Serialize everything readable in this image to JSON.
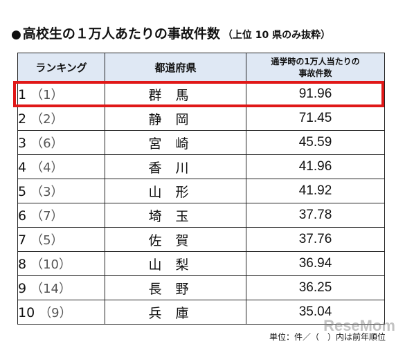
{
  "title": {
    "bullet": "●",
    "main": "高校生の１万人あたりの事故件数",
    "sub": "（上位 10 県のみ抜粋）"
  },
  "table": {
    "headers": {
      "rank": "ランキング",
      "prefecture": "都道府県",
      "rate_line1": "通学時の1万人当たりの",
      "rate_line2": "事故件数"
    },
    "rows": [
      {
        "rank": "1",
        "prev": "（1）",
        "prefecture": "群馬",
        "rate": "91.96"
      },
      {
        "rank": "2",
        "prev": "（2）",
        "prefecture": "静岡",
        "rate": "71.45"
      },
      {
        "rank": "3",
        "prev": "（6）",
        "prefecture": "宮崎",
        "rate": "45.59"
      },
      {
        "rank": "4",
        "prev": "（4）",
        "prefecture": "香川",
        "rate": "41.96"
      },
      {
        "rank": "5",
        "prev": "（3）",
        "prefecture": "山形",
        "rate": "41.92"
      },
      {
        "rank": "6",
        "prev": "（7）",
        "prefecture": "埼玉",
        "rate": "37.78"
      },
      {
        "rank": "7",
        "prev": "（5）",
        "prefecture": "佐賀",
        "rate": "37.76"
      },
      {
        "rank": "8",
        "prev": "（10）",
        "prefecture": "山梨",
        "rate": "36.94"
      },
      {
        "rank": "9",
        "prev": "（14）",
        "prefecture": "長野",
        "rate": "36.25"
      },
      {
        "rank": "10",
        "prev": "（9）",
        "prefecture": "兵庫",
        "rate": "35.04"
      }
    ]
  },
  "highlight": {
    "color": "#e01818"
  },
  "footnote": "単位：件／（　）内は前年順位",
  "watermark": "ReseMom"
}
